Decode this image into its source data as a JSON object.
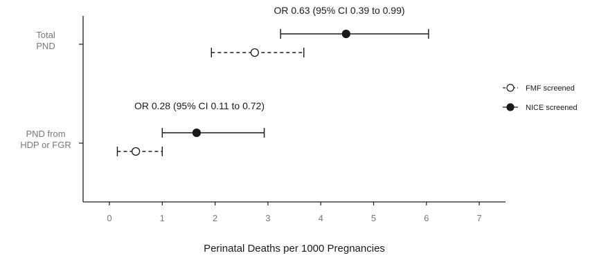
{
  "chart_data": {
    "type": "forest",
    "xlabel": "Perinatal Deaths per 1000 Pregnancies",
    "xlim": [
      -0.5,
      7.5
    ],
    "xticks": [
      0,
      1,
      2,
      3,
      4,
      5,
      6,
      7
    ],
    "categories": [
      {
        "label_lines": [
          "Total",
          "PND"
        ]
      },
      {
        "label_lines": [
          "PND from",
          "HDP or FGR"
        ]
      }
    ],
    "series": [
      {
        "name": "FMF screened",
        "marker": "open-circle",
        "line_style": "dashed",
        "color": "#1a1a1a",
        "points": [
          {
            "category": 0,
            "estimate": 2.75,
            "lower": 1.93,
            "upper": 3.68
          },
          {
            "category": 1,
            "estimate": 0.5,
            "lower": 0.15,
            "upper": 1.0
          }
        ]
      },
      {
        "name": "NICE screened",
        "marker": "filled-circle",
        "line_style": "solid",
        "color": "#1a1a1a",
        "points": [
          {
            "category": 0,
            "estimate": 4.48,
            "lower": 3.24,
            "upper": 6.04
          },
          {
            "category": 1,
            "estimate": 1.65,
            "lower": 1.0,
            "upper": 2.93
          }
        ]
      }
    ],
    "annotations": [
      {
        "category": 0,
        "text": "OR 0.63 (95% CI 0.39 to 0.99)"
      },
      {
        "category": 1,
        "text": "OR 0.28 (95% CI 0.11 to 0.72)"
      }
    ],
    "legend_position": "right",
    "grid": false
  }
}
